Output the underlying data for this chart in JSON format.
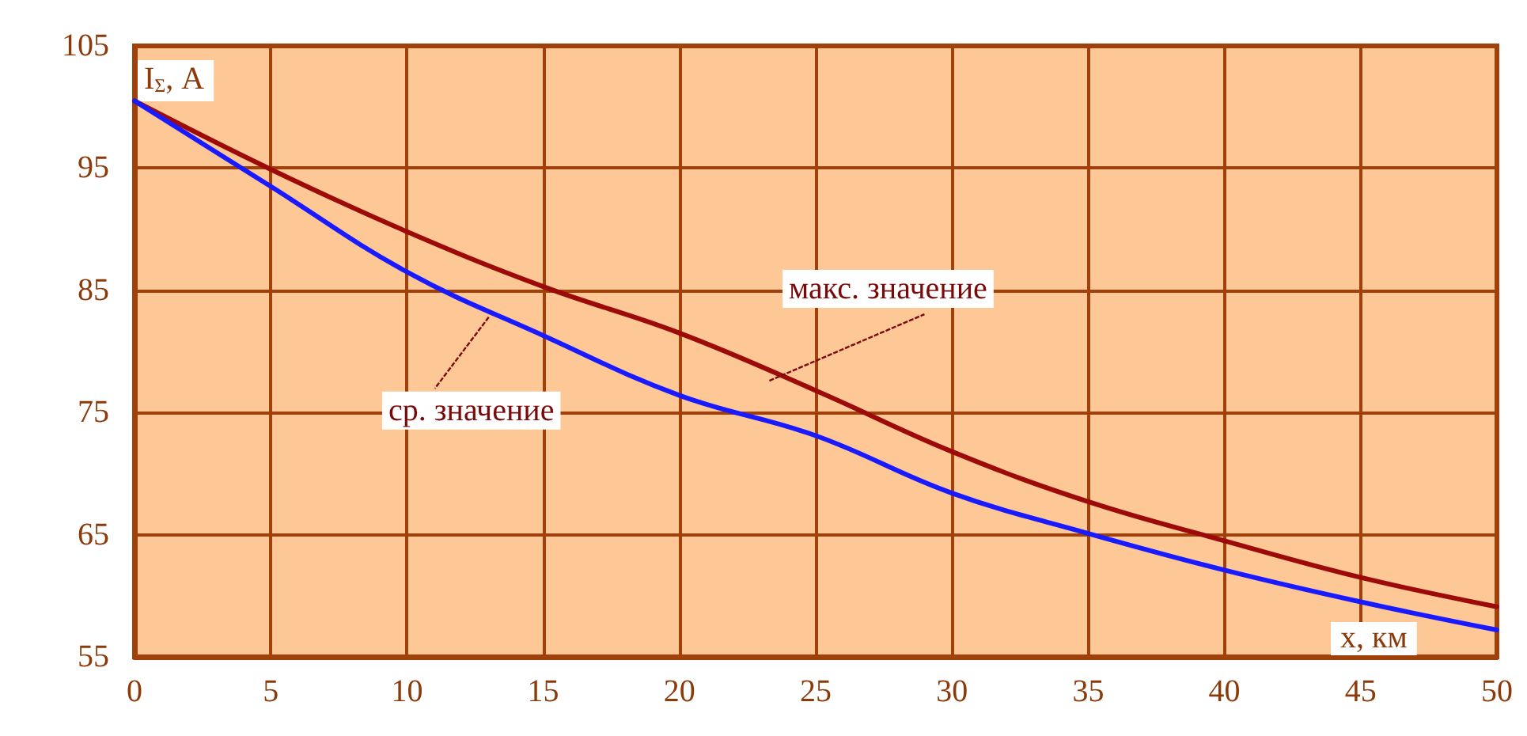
{
  "chart_data": {
    "type": "line",
    "xlabel": "x, км",
    "ylabel": "I$_{Σ}$, А",
    "x": [
      0,
      5,
      10,
      15,
      20,
      25,
      30,
      35,
      40,
      45,
      50
    ],
    "series": [
      {
        "color": "#9c0a0a",
        "values": [
          100.5,
          94.9,
          89.8,
          85.3,
          81.5,
          76.8,
          71.8,
          67.7,
          64.5,
          61.5,
          59.1
        ]
      },
      {
        "color": "#1a1aff",
        "values": [
          100.5,
          93.5,
          86.5,
          81.3,
          76.4,
          73.1,
          68.4,
          65.1,
          62.1,
          59.5,
          57.2
        ]
      }
    ],
    "annotations": [
      {
        "text": "макс. значение",
        "x": 23.3,
        "y": 77.6
      },
      {
        "text": "ср. значение",
        "x": 13,
        "y": 82.8
      }
    ],
    "xlim": [
      0,
      50
    ],
    "xticks": [
      0,
      5,
      10,
      15,
      20,
      25,
      30,
      35,
      40,
      45,
      50
    ],
    "ylim": [
      55,
      105
    ],
    "yticks": [
      55,
      65,
      75,
      85,
      95,
      105
    ],
    "grid": true,
    "marker": "none",
    "line_style": "solid"
  }
}
